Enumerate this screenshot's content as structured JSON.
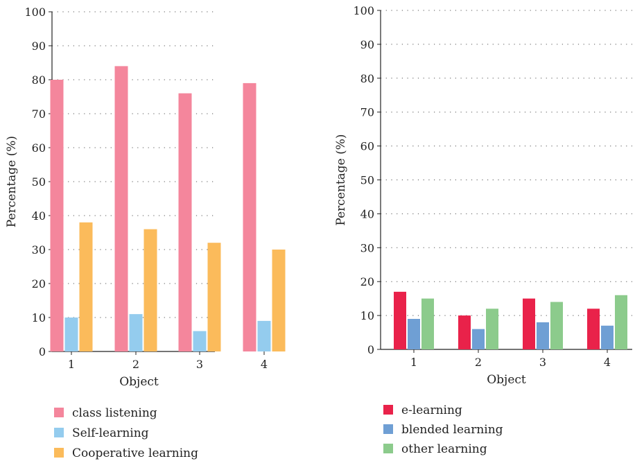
{
  "chart_data": [
    {
      "type": "bar",
      "title": "",
      "xlabel": "Object",
      "ylabel": "Percentage (%)",
      "ylim": [
        0,
        100
      ],
      "yticks": [
        0,
        10,
        20,
        30,
        40,
        50,
        60,
        70,
        80,
        90,
        100
      ],
      "categories": [
        "1",
        "2",
        "3",
        "4"
      ],
      "grid": true,
      "legend_position": "bottom",
      "series": [
        {
          "name": "class listening",
          "color": "#f4869c",
          "values": [
            80,
            84,
            76,
            79
          ]
        },
        {
          "name": "Self-learning",
          "color": "#94ccee",
          "values": [
            10,
            11,
            6,
            9
          ]
        },
        {
          "name": "Cooperative learning",
          "color": "#fbbb5b",
          "values": [
            38,
            36,
            32,
            30
          ]
        }
      ]
    },
    {
      "type": "bar",
      "title": "",
      "xlabel": "Object",
      "ylabel": "Percentage (%)",
      "ylim": [
        0,
        100
      ],
      "yticks": [
        0,
        10,
        20,
        30,
        40,
        50,
        60,
        70,
        80,
        90,
        100
      ],
      "categories": [
        "1",
        "2",
        "3",
        "4"
      ],
      "grid": true,
      "legend_position": "bottom",
      "series": [
        {
          "name": "e-learning",
          "color": "#e9224a",
          "values": [
            17,
            10,
            15,
            12
          ]
        },
        {
          "name": "blended learning",
          "color": "#6f9fd4",
          "values": [
            9,
            6,
            8,
            7
          ]
        },
        {
          "name": "other learning",
          "color": "#8ccb8c",
          "values": [
            15,
            12,
            14,
            16
          ]
        }
      ]
    }
  ]
}
